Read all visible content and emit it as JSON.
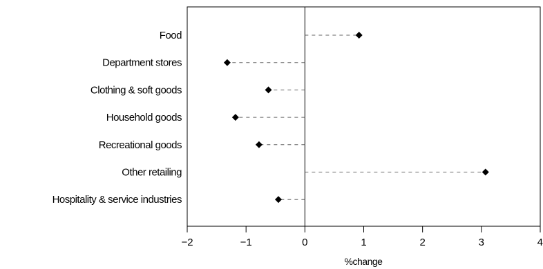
{
  "chart_data": {
    "type": "dot",
    "title": "",
    "xlabel": "%change",
    "ylabel": "",
    "xlim": [
      -2,
      4
    ],
    "xticks": [
      -2,
      -1,
      0,
      1,
      2,
      3,
      4
    ],
    "tick_labels": [
      "−2",
      "−1",
      "0",
      "1",
      "2",
      "3",
      "4"
    ],
    "categories": [
      "Food",
      "Department stores",
      "Clothing & soft goods",
      "Household goods",
      "Recreational goods",
      "Other retailing",
      "Hospitality & service industries"
    ],
    "values": [
      0.92,
      -1.32,
      -0.62,
      -1.18,
      -0.78,
      3.07,
      -0.45
    ],
    "grid": false,
    "legend": "none",
    "colors": {
      "marker": "#000000",
      "leader": "#666666",
      "axis": "#000000"
    }
  }
}
